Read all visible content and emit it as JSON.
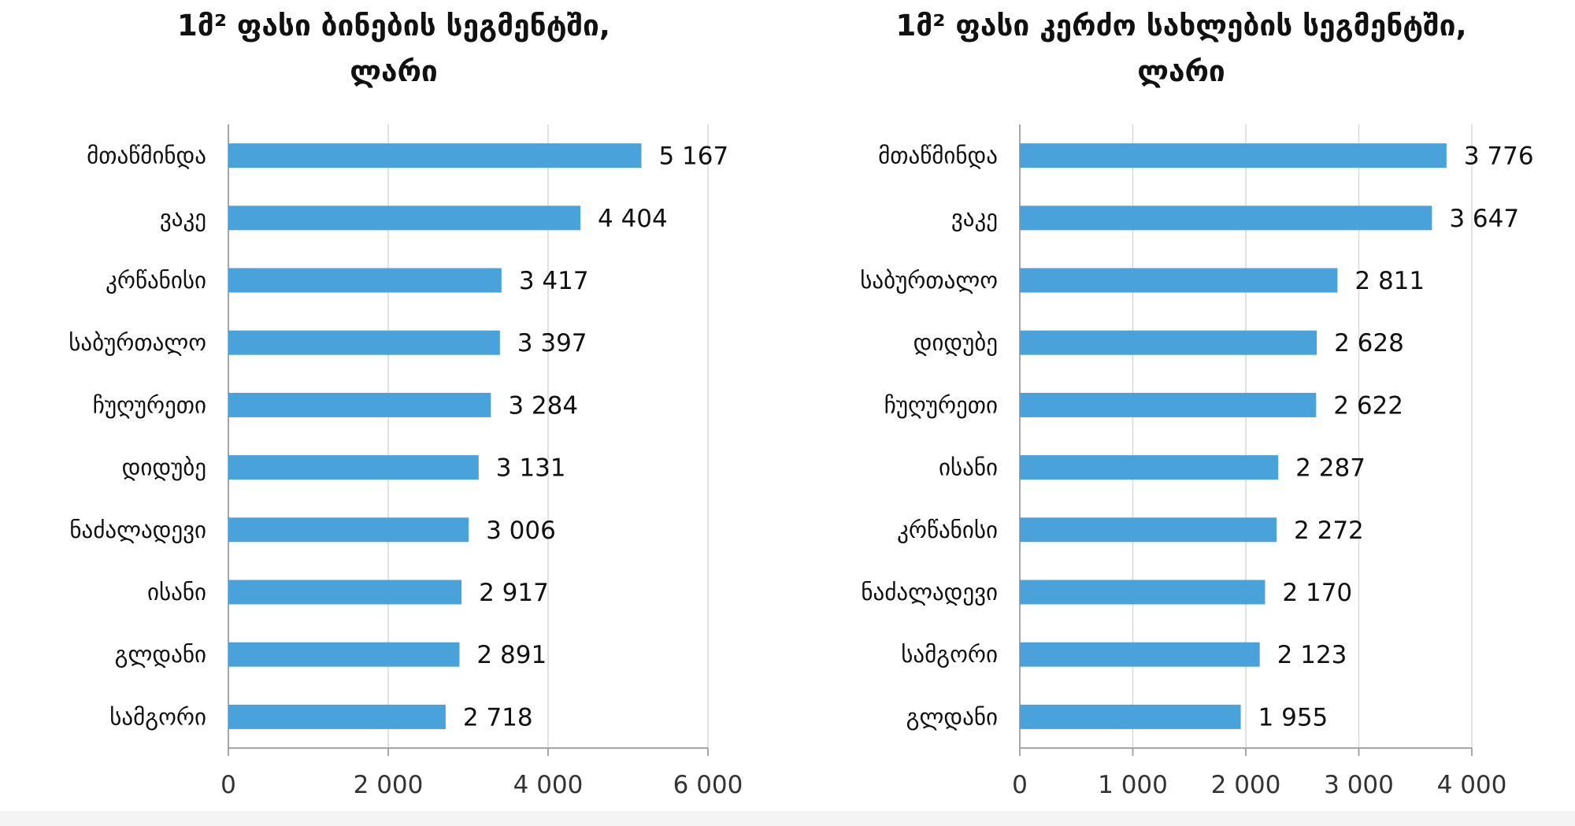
{
  "colors": {
    "bar": "#4AA2DB",
    "grid": "#D9D9D9",
    "axis": "#A6A6A6"
  },
  "chart_data": [
    {
      "type": "bar",
      "orientation": "horizontal",
      "title_line1": "1მ² ფასი ბინების სეგმენტში,",
      "title_line2": "ლარი",
      "categories": [
        "მთაწმინდა",
        "ვაკე",
        "კრწანისი",
        "საბურთალო",
        "ჩუღურეთი",
        "დიდუბე",
        "ნაძალადევი",
        "ისანი",
        "გლდანი",
        "სამგორი"
      ],
      "values": [
        5167,
        4404,
        3417,
        3397,
        3284,
        3131,
        3006,
        2917,
        2891,
        2718
      ],
      "value_labels": [
        "5 167",
        "4 404",
        "3 417",
        "3 397",
        "3 284",
        "3 131",
        "3 006",
        "2 917",
        "2 891",
        "2 718"
      ],
      "xlim": [
        0,
        6000
      ],
      "ticks": [
        0,
        2000,
        4000,
        6000
      ],
      "tick_labels": [
        "0",
        "2 000",
        "4 000",
        "6 000"
      ],
      "grid": true
    },
    {
      "type": "bar",
      "orientation": "horizontal",
      "title_line1": "1მ² ფასი კერძო სახლების სეგმენტში,",
      "title_line2": "ლარი",
      "categories": [
        "მთაწმინდა",
        "ვაკე",
        "საბურთალო",
        "დიდუბე",
        "ჩუღურეთი",
        "ისანი",
        "კრწანისი",
        "ნაძალადევი",
        "სამგორი",
        "გლდანი"
      ],
      "values": [
        3776,
        3647,
        2811,
        2628,
        2622,
        2287,
        2272,
        2170,
        2123,
        1955
      ],
      "value_labels": [
        "3 776",
        "3 647",
        "2 811",
        "2 628",
        "2 622",
        "2 287",
        "2 272",
        "2 170",
        "2 123",
        "1 955"
      ],
      "xlim": [
        0,
        4000
      ],
      "ticks": [
        0,
        1000,
        2000,
        3000,
        4000
      ],
      "tick_labels": [
        "0",
        "1 000",
        "2 000",
        "3 000",
        "4 000"
      ],
      "grid": true
    }
  ]
}
